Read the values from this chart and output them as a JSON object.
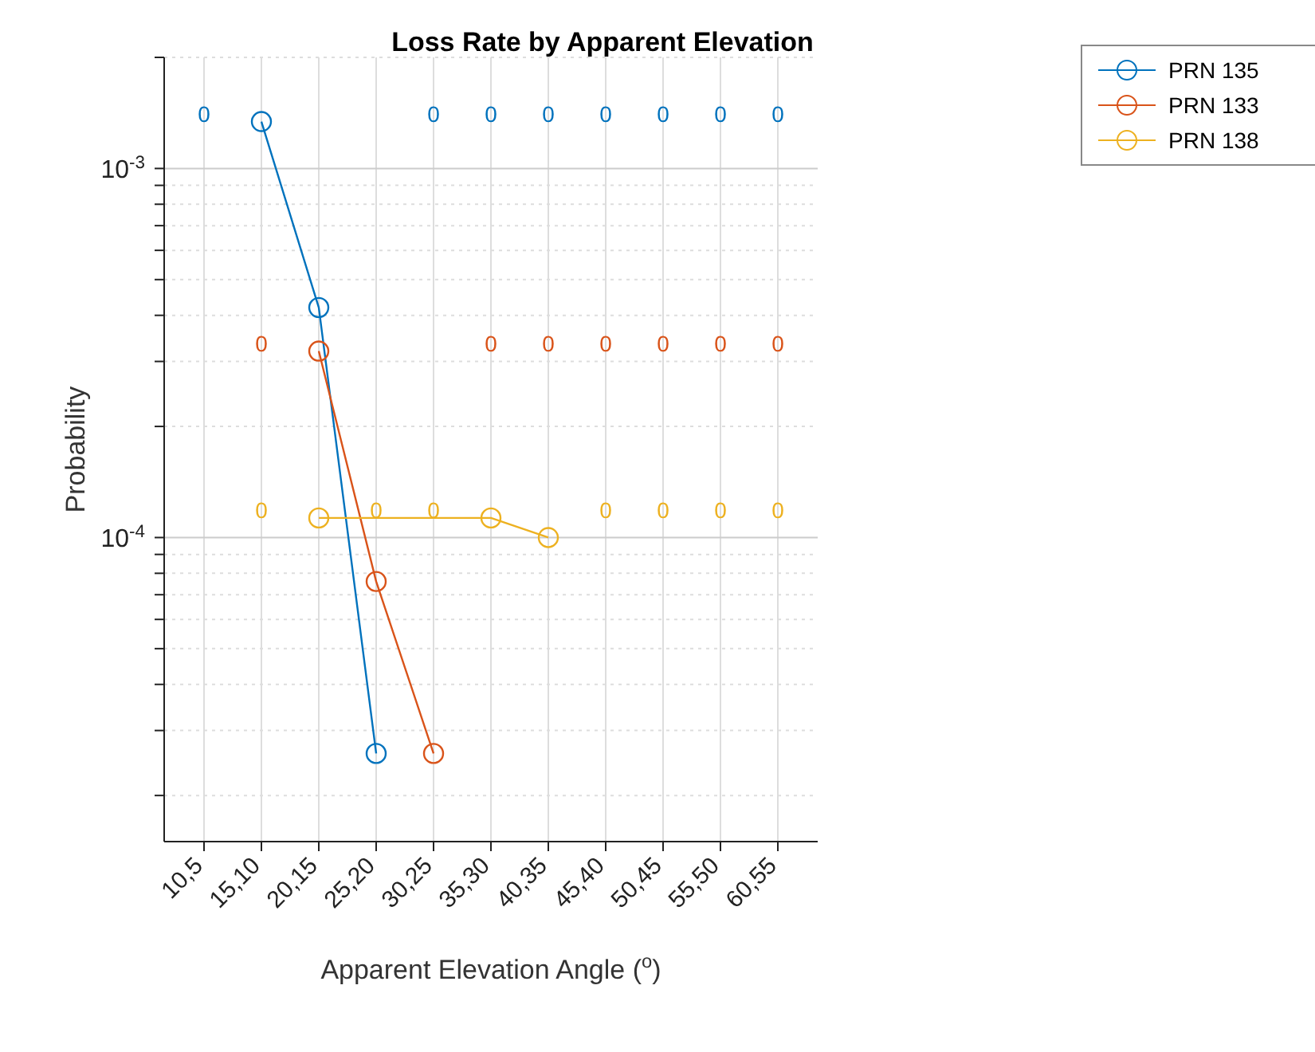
{
  "chart_data": {
    "type": "line",
    "title": "Loss Rate by Apparent Elevation",
    "xlabel": "Apparent Elevation Angle ($^{o}$)",
    "ylabel": "Probability",
    "categories": [
      "10,5",
      "15,10",
      "20,15",
      "25,20",
      "30,25",
      "35,30",
      "40,35",
      "45,40",
      "50,45",
      "55,50",
      "60,55"
    ],
    "series": [
      {
        "name": "PRN 135",
        "color": "#0072bd",
        "values": [
          null,
          0.00134,
          0.00042,
          2.6e-05,
          null,
          null,
          null,
          null,
          null,
          null,
          null
        ],
        "value_labels": [
          "0",
          null,
          null,
          null,
          "0",
          "0",
          "0",
          "0",
          "0",
          "0",
          "0"
        ]
      },
      {
        "name": "PRN 133",
        "color": "#d95319",
        "values": [
          null,
          null,
          0.00032,
          7.6e-05,
          2.6e-05,
          null,
          null,
          null,
          null,
          null,
          null
        ],
        "value_labels": [
          null,
          "0",
          null,
          null,
          null,
          "0",
          "0",
          "0",
          "0",
          "0",
          "0"
        ]
      },
      {
        "name": "PRN 138",
        "color": "#edb120",
        "values": [
          null,
          null,
          0.000113,
          null,
          null,
          0.000113,
          0.0001,
          null,
          null,
          null,
          null
        ],
        "value_labels": [
          null,
          "0",
          null,
          "0",
          "0",
          null,
          null,
          "0",
          "0",
          "0",
          "0"
        ]
      }
    ],
    "log": "y",
    "ylim": [
      1.5e-05,
      0.002
    ],
    "yticks": [
      {
        "value": 2e-05,
        "label": null
      },
      {
        "value": 3e-05,
        "label": null
      },
      {
        "value": 4e-05,
        "label": null
      },
      {
        "value": 5e-05,
        "label": null
      },
      {
        "value": 6e-05,
        "label": null
      },
      {
        "value": 7e-05,
        "label": null
      },
      {
        "value": 8e-05,
        "label": null
      },
      {
        "value": 9e-05,
        "label": null
      },
      {
        "value": 0.0001,
        "label": "10$^{-4}$"
      },
      {
        "value": 0.0002,
        "label": null
      },
      {
        "value": 0.0003,
        "label": null
      },
      {
        "value": 0.0004,
        "label": null
      },
      {
        "value": 0.0005,
        "label": null
      },
      {
        "value": 0.0006,
        "label": null
      },
      {
        "value": 0.0007,
        "label": null
      },
      {
        "value": 0.0008,
        "label": null
      },
      {
        "value": 0.0009,
        "label": null
      },
      {
        "value": 0.001,
        "label": "10$^{-3}$"
      },
      {
        "value": 0.002,
        "label": null
      }
    ],
    "grid": true,
    "legend": "top right",
    "marker": "circle",
    "line_style": "solid"
  }
}
